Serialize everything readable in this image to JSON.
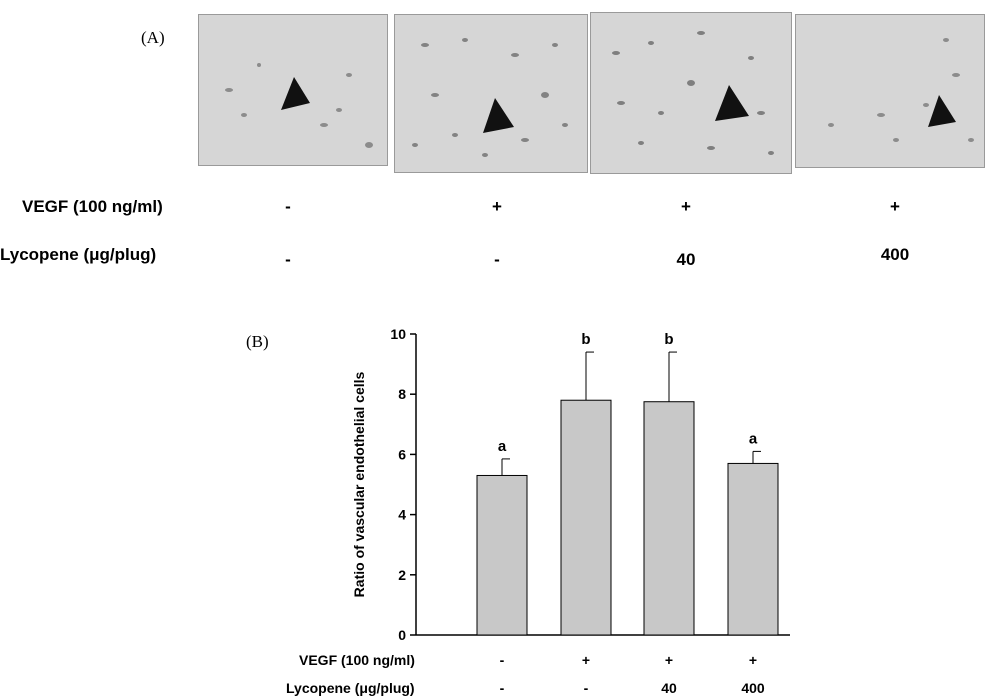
{
  "panel_a": {
    "label": "(A)",
    "photos": [
      "micrograph-1",
      "micrograph-2",
      "micrograph-3",
      "micrograph-4"
    ],
    "rows": [
      {
        "label": "VEGF (100 ng/ml)",
        "values": [
          "-",
          "+",
          "+",
          "+"
        ]
      },
      {
        "label": "Lycopene (μg/plug)",
        "values": [
          "-",
          "-",
          "40",
          "400"
        ]
      }
    ]
  },
  "panel_b": {
    "label": "(B)"
  },
  "chart_data": {
    "type": "bar",
    "title": "",
    "xlabel": "",
    "ylabel": "Ratio of vascular endothelial cells",
    "ylim": [
      0,
      10
    ],
    "yticks": [
      0,
      2,
      4,
      6,
      8,
      10
    ],
    "grid": false,
    "bar_color": "#c8c8c8",
    "categories": [
      "1",
      "2",
      "3",
      "4"
    ],
    "values": [
      5.3,
      7.8,
      7.75,
      5.7
    ],
    "errors": [
      0.55,
      1.6,
      1.65,
      0.4
    ],
    "letters": [
      "a",
      "b",
      "b",
      "a"
    ],
    "x_rows": [
      {
        "label": "VEGF (100 ng/ml)",
        "values": [
          "-",
          "+",
          "+",
          "+"
        ]
      },
      {
        "label": "Lycopene (μg/plug)",
        "values": [
          "-",
          "-",
          "40",
          "400"
        ]
      }
    ]
  }
}
